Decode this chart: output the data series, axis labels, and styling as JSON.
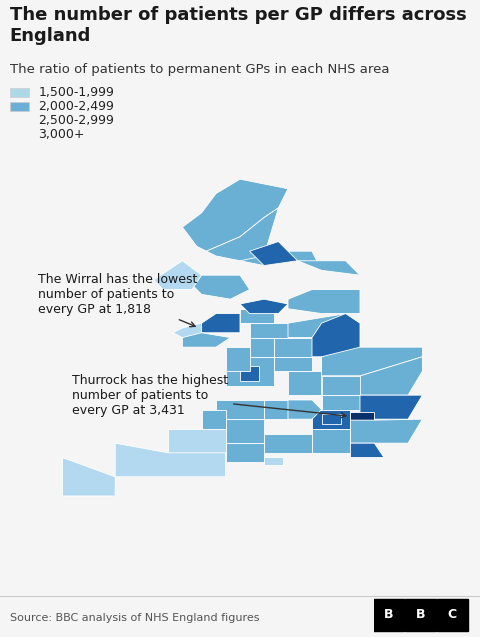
{
  "title_line1": "The number of patients per GP differs across",
  "title_line2": "England",
  "subtitle": "The ratio of patients to permanent GPs in each NHS area",
  "legend_labels": [
    "1,500-1,999",
    "2,000-2,499",
    "2,500-2,999",
    "3,000+"
  ],
  "legend_colors": [
    "#add8e6",
    "#6baed6",
    "#2171b5",
    "#08306b"
  ],
  "annotation_wirral": "The Wirral has the lowest\nnumber of patients to\nevery GP at 1,818",
  "annotation_thurrock": "Thurrock has the highest\nnumber of patients to\nevery GP at 3,431",
  "source": "Source: BBC analysis of NHS England figures",
  "bg_color": "#f5f5f5",
  "map_bg": "#f5f5f5",
  "border_color": "#ffffff",
  "title_fontsize": 13,
  "subtitle_fontsize": 9.5,
  "legend_fontsize": 9,
  "annotation_fontsize": 9,
  "source_fontsize": 8,
  "color_1500": "#b3d9f0",
  "color_2000": "#6aafd4",
  "color_2500": "#2166ac",
  "color_3000": "#08306b"
}
